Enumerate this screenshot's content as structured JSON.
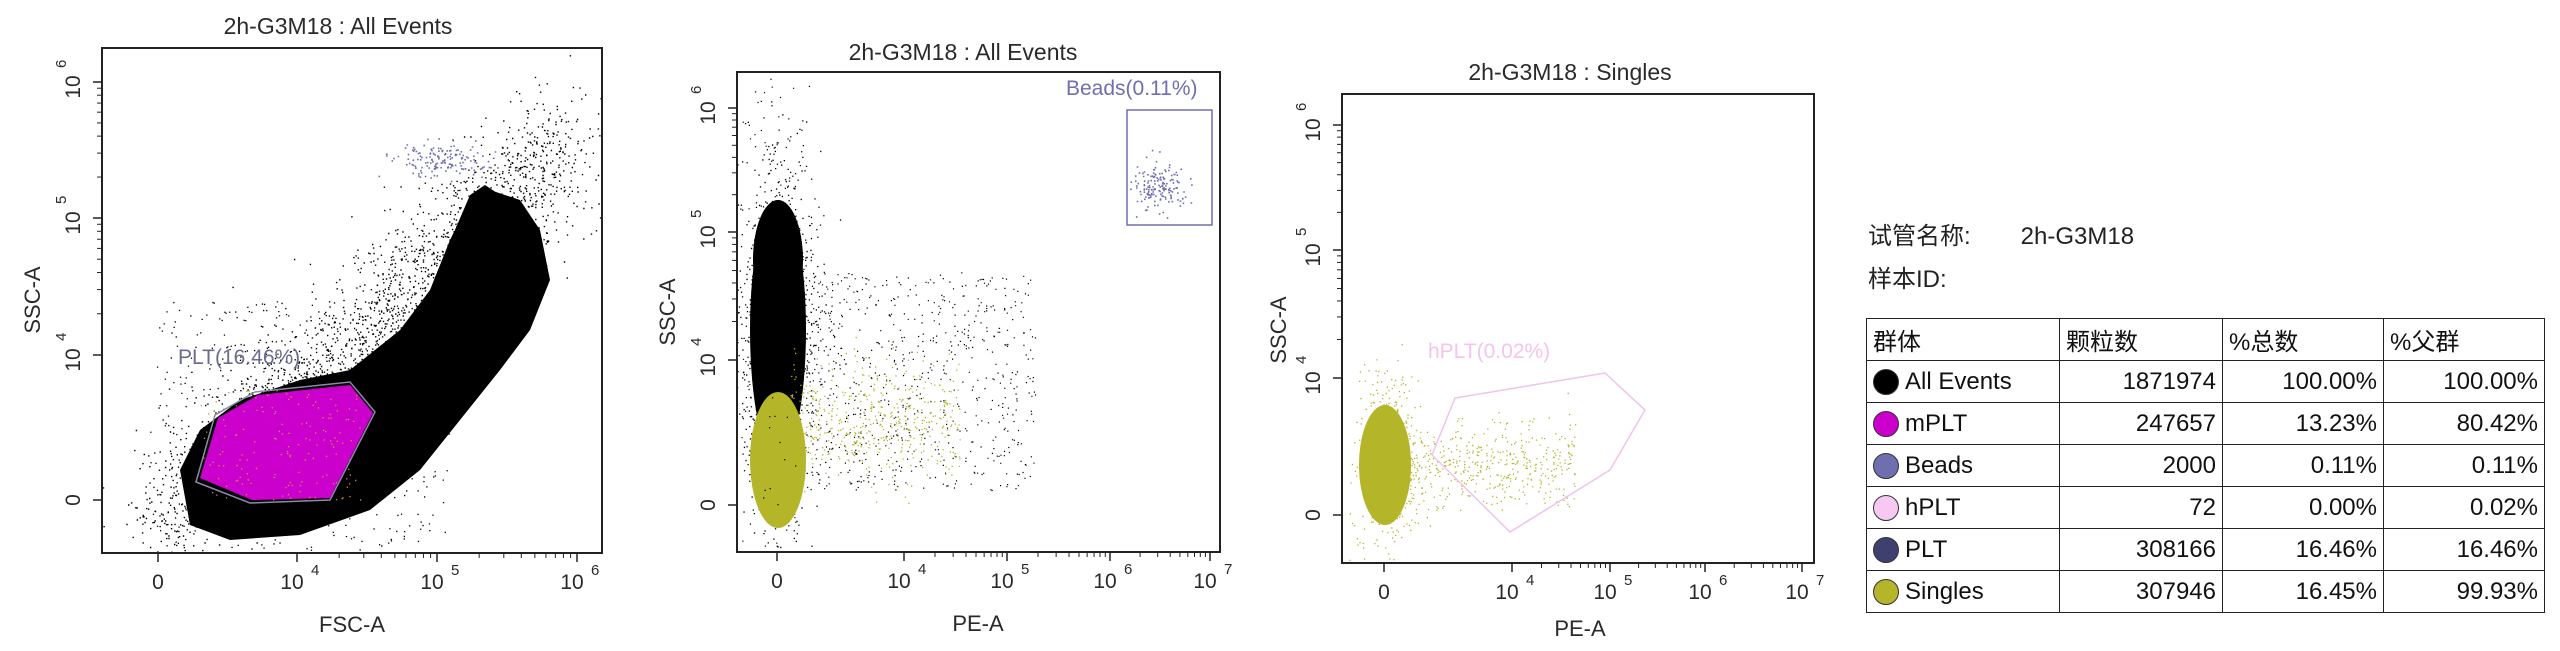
{
  "plots": [
    {
      "title": "2h-G3M18 : All Events",
      "xlabel": "FSC-A",
      "ylabel": "SSC-A",
      "xticks": [
        "0",
        "10",
        "10",
        "10"
      ],
      "xexp": [
        "",
        "4",
        "5",
        "6"
      ],
      "yticks": [
        "0",
        "10",
        "10",
        "10"
      ],
      "yexp": [
        "",
        "4",
        "5",
        "6"
      ],
      "gate_label": "PLT(16.46%)"
    },
    {
      "title": "2h-G3M18 : All Events",
      "xlabel": "PE-A",
      "ylabel": "SSC-A",
      "xticks": [
        "0",
        "10",
        "10",
        "10",
        "10"
      ],
      "xexp": [
        "",
        "4",
        "5",
        "6",
        "7"
      ],
      "yticks": [
        "0",
        "10",
        "10",
        "10"
      ],
      "yexp": [
        "",
        "4",
        "5",
        "6"
      ],
      "gate_label": "Beads(0.11%)"
    },
    {
      "title": "2h-G3M18 : Singles",
      "xlabel": "PE-A",
      "ylabel": "SSC-A",
      "xticks": [
        "0",
        "10",
        "10",
        "10",
        "10"
      ],
      "xexp": [
        "",
        "4",
        "5",
        "6",
        "7"
      ],
      "yticks": [
        "0",
        "10",
        "10",
        "10"
      ],
      "yexp": [
        "",
        "4",
        "5",
        "6"
      ],
      "gate_label": "hPLT(0.02%)"
    }
  ],
  "info": {
    "tube_label": "试管名称:",
    "tube_value": "2h-G3M18",
    "sample_label": "样本ID:",
    "sample_value": ""
  },
  "table": {
    "headers": [
      "群体",
      "颗粒数",
      "%总数",
      "%父群"
    ],
    "rows": [
      {
        "name": "All Events",
        "count": "1871974",
        "total": "100.00%",
        "parent": "100.00%",
        "color": "#000000"
      },
      {
        "name": "mPLT",
        "count": "247657",
        "total": "13.23%",
        "parent": "80.42%",
        "color": "#cc00cc"
      },
      {
        "name": "Beads",
        "count": "2000",
        "total": "0.11%",
        "parent": "0.11%",
        "color": "#6f6fb0"
      },
      {
        "name": "hPLT",
        "count": "72",
        "total": "0.00%",
        "parent": "0.02%",
        "color": "#f6c8f2"
      },
      {
        "name": "PLT",
        "count": "308166",
        "total": "16.46%",
        "parent": "16.46%",
        "color": "#404070"
      },
      {
        "name": "Singles",
        "count": "307946",
        "total": "16.45%",
        "parent": "99.93%",
        "color": "#b5b52a"
      }
    ]
  },
  "chart_data": [
    {
      "type": "scatter",
      "title": "2h-G3M18 : All Events",
      "xlabel": "FSC-A",
      "ylabel": "SSC-A",
      "x_scale": "biexponential",
      "y_scale": "biexponential",
      "xlim": [
        0,
        2000000
      ],
      "ylim": [
        0,
        2000000
      ],
      "series": [
        {
          "name": "All Events",
          "color": "#000000"
        },
        {
          "name": "mPLT",
          "color": "#cc00cc"
        },
        {
          "name": "Beads",
          "color": "#6f6fb0"
        }
      ],
      "gates": [
        {
          "name": "PLT",
          "label": "PLT(16.46%)",
          "shape": "polygon"
        }
      ]
    },
    {
      "type": "scatter",
      "title": "2h-G3M18 : All Events",
      "xlabel": "PE-A",
      "ylabel": "SSC-A",
      "x_scale": "biexponential",
      "y_scale": "biexponential",
      "xlim": [
        0,
        10000000
      ],
      "ylim": [
        0,
        2000000
      ],
      "series": [
        {
          "name": "All Events",
          "color": "#000000"
        },
        {
          "name": "Singles",
          "color": "#b5b52a"
        },
        {
          "name": "Beads",
          "color": "#6f6fb0"
        }
      ],
      "gates": [
        {
          "name": "Beads",
          "label": "Beads(0.11%)",
          "shape": "rectangle"
        }
      ]
    },
    {
      "type": "scatter",
      "title": "2h-G3M18 : Singles",
      "xlabel": "PE-A",
      "ylabel": "SSC-A",
      "x_scale": "biexponential",
      "y_scale": "biexponential",
      "xlim": [
        0,
        10000000
      ],
      "ylim": [
        0,
        2000000
      ],
      "series": [
        {
          "name": "Singles",
          "color": "#b5b52a"
        }
      ],
      "gates": [
        {
          "name": "hPLT",
          "label": "hPLT(0.02%)",
          "shape": "polygon"
        }
      ]
    }
  ]
}
